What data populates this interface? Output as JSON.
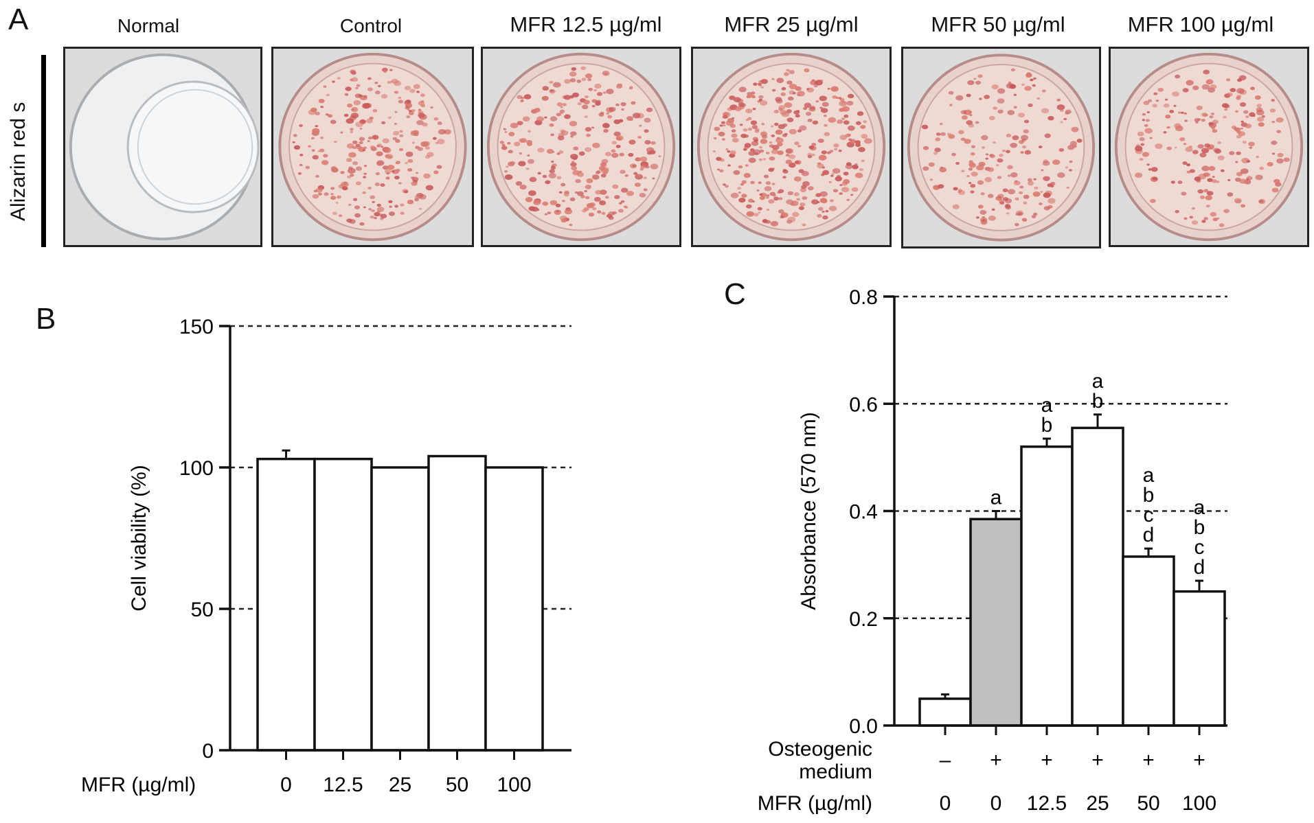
{
  "panels": {
    "a_letter": "A",
    "b_letter": "B",
    "c_letter": "C"
  },
  "panel_a": {
    "row_label": "Alizarin red s",
    "wells": [
      {
        "label": "Normal",
        "stained": false
      },
      {
        "label": "Control",
        "stained": true,
        "density": "high"
      },
      {
        "label": "MFR 12.5 µg/ml",
        "stained": true,
        "density": "high"
      },
      {
        "label": "MFR 25 µg/ml",
        "stained": true,
        "density": "very-high"
      },
      {
        "label": "MFR 50 µg/ml",
        "stained": true,
        "density": "medium"
      },
      {
        "label": "MFR 100 µg/ml",
        "stained": true,
        "density": "medium"
      }
    ],
    "stain_color": "#c85a5a"
  },
  "chart_data": [
    {
      "panel": "B",
      "type": "bar",
      "ylabel": "Cell viability (%)",
      "xlabel": "MFR (µg/ml)",
      "categories": [
        "0",
        "12.5",
        "25",
        "50",
        "100"
      ],
      "values": [
        103,
        103,
        100,
        104,
        100
      ],
      "errors": [
        3,
        0,
        0,
        0,
        0
      ],
      "ylim": [
        0,
        150
      ],
      "yticks": [
        0,
        50,
        100,
        150
      ],
      "grid": "dashed at 50, 100, 150",
      "bar_color": "#ffffff"
    },
    {
      "panel": "C",
      "type": "bar",
      "ylabel": "Absorbance (570 nm)",
      "row_labels": [
        "Osteogenic\nmedium",
        "MFR (µg/ml)"
      ],
      "osteogenic_label": "Osteogenic medium",
      "osteogenic_label_lines": [
        "Osteogenic",
        "medium"
      ],
      "mfr_label": "MFR (µg/ml)",
      "osteogenic": [
        "–",
        "+",
        "+",
        "+",
        "+",
        "+"
      ],
      "categories": [
        "0",
        "0",
        "12.5",
        "25",
        "50",
        "100"
      ],
      "values": [
        0.05,
        0.385,
        0.52,
        0.555,
        0.315,
        0.25
      ],
      "errors": [
        0.008,
        0.015,
        0.015,
        0.025,
        0.015,
        0.02
      ],
      "significance": [
        [],
        [
          "a"
        ],
        [
          "a",
          "b"
        ],
        [
          "a",
          "b"
        ],
        [
          "a",
          "b",
          "c",
          "d"
        ],
        [
          "a",
          "b",
          "c",
          "d"
        ]
      ],
      "bar_colors": [
        "#ffffff",
        "#c0c0c0",
        "#ffffff",
        "#ffffff",
        "#ffffff",
        "#ffffff"
      ],
      "ylim": [
        0,
        0.8
      ],
      "yticks": [
        "0.0",
        "0.2",
        "0.4",
        "0.6",
        "0.8"
      ],
      "grid": "dashed at 0.2, 0.4, 0.6, 0.8"
    }
  ]
}
